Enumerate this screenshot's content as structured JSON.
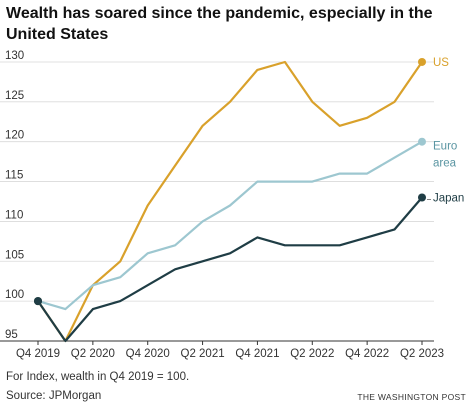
{
  "title": "Wealth has soared since the pandemic, especially in the United States",
  "note": "For Index, wealth in Q4 2019 = 100.",
  "source": "Source: JPMorgan",
  "credit": "THE WASHINGTON POST",
  "colors": {
    "US": "#d9a12b",
    "Euro area": "#9dc7d0",
    "Japan": "#1f3d45",
    "grid": "#d9d9d9",
    "axis": "#333333"
  },
  "chart_data": {
    "type": "line",
    "x": [
      "Q4 2019",
      "Q1 2020",
      "Q2 2020",
      "Q3 2020",
      "Q4 2020",
      "Q1 2021",
      "Q2 2021",
      "Q3 2021",
      "Q4 2021",
      "Q1 2022",
      "Q2 2022",
      "Q3 2022",
      "Q4 2022",
      "Q1 2023",
      "Q2 2023"
    ],
    "xticks": [
      "Q4 2019",
      "Q2 2020",
      "Q4 2020",
      "Q2 2021",
      "Q4 2021",
      "Q2 2022",
      "Q4 2022",
      "Q2 2023"
    ],
    "yticks": [
      95,
      100,
      105,
      110,
      115,
      120,
      125,
      130
    ],
    "ylim": [
      95,
      131
    ],
    "grid": true,
    "series": [
      {
        "name": "US",
        "label_lines": [
          "US"
        ],
        "color": "#d9a12b",
        "values": [
          100,
          95,
          102,
          105,
          112,
          117,
          122,
          125,
          129,
          130,
          125,
          122,
          123,
          125,
          130
        ]
      },
      {
        "name": "Euro area",
        "label_lines": [
          "Euro",
          "area"
        ],
        "color": "#9dc7d0",
        "values": [
          100,
          99,
          102,
          103,
          106,
          107,
          110,
          112,
          115,
          115,
          115,
          116,
          116,
          118,
          120
        ]
      },
      {
        "name": "Japan",
        "label_lines": [
          "Japan"
        ],
        "color": "#1f3d45",
        "values": [
          100,
          95,
          99,
          100,
          102,
          104,
          105,
          106,
          108,
          107,
          107,
          107,
          108,
          109,
          113
        ]
      }
    ]
  }
}
